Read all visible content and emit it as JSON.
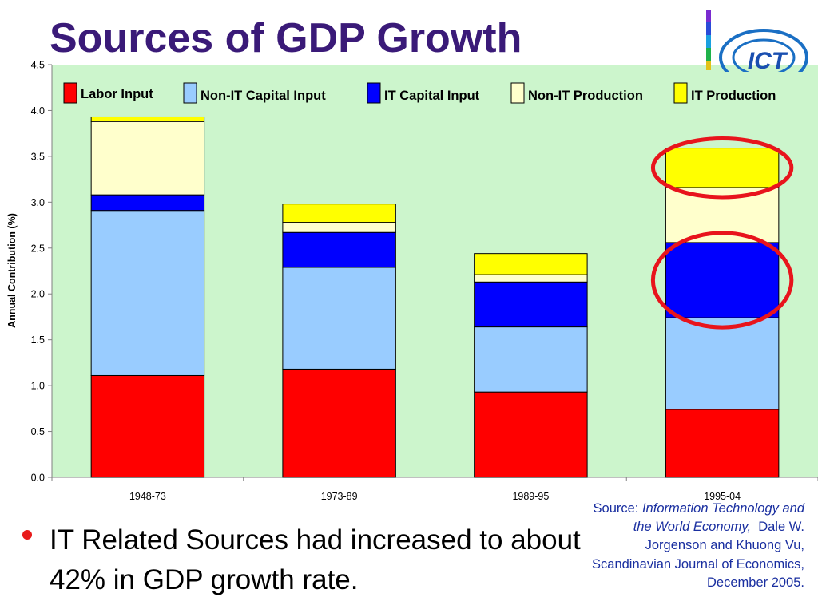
{
  "slide": {
    "title": "Sources of GDP Growth",
    "bullet": "IT Related Sources had increased to about 42% in GDP growth rate.",
    "source": {
      "prefix": "Source: ",
      "italic_title": "Information Technology and the World Economy,",
      "rest": "Dale W. Jorgenson and Khuong Vu, Scandinavian Journal of Economics, December 2005."
    },
    "logo_text": "ICT"
  },
  "colors": {
    "title": "#3a1a78",
    "plot_bg": "#ccf5cc",
    "highlight_circle": "#e8141c",
    "source_text": "#1a2fa0"
  },
  "chart_data": {
    "type": "bar",
    "stacked": true,
    "ylabel": "Annual Contribution (%)",
    "xlabel": "",
    "ylim": [
      0,
      4.5
    ],
    "yticks": [
      "0.0",
      "0.5",
      "1.0",
      "1.5",
      "2.0",
      "2.5",
      "3.0",
      "3.5",
      "4.0",
      "4.5"
    ],
    "grid": false,
    "legend_position": "top",
    "categories": [
      "1948-73",
      "1973-89",
      "1989-95",
      "1995-04"
    ],
    "series": [
      {
        "name": "Labor Input",
        "color": "#ff0000",
        "values": [
          1.11,
          1.18,
          0.93,
          0.74
        ]
      },
      {
        "name": "Non-IT Capital Input",
        "color": "#99ccff",
        "values": [
          1.8,
          1.11,
          0.71,
          1.0
        ]
      },
      {
        "name": "IT Capital Input",
        "color": "#0000ff",
        "values": [
          0.17,
          0.38,
          0.49,
          0.82
        ]
      },
      {
        "name": "Non-IT Production",
        "color": "#ffffcc",
        "values": [
          0.8,
          0.11,
          0.08,
          0.6
        ]
      },
      {
        "name": "IT Production",
        "color": "#ffff00",
        "values": [
          0.05,
          0.2,
          0.23,
          0.43
        ]
      }
    ],
    "highlighted": [
      {
        "category": "1995-04",
        "series": "IT Production"
      },
      {
        "category": "1995-04",
        "series": "IT Capital Input"
      }
    ]
  }
}
